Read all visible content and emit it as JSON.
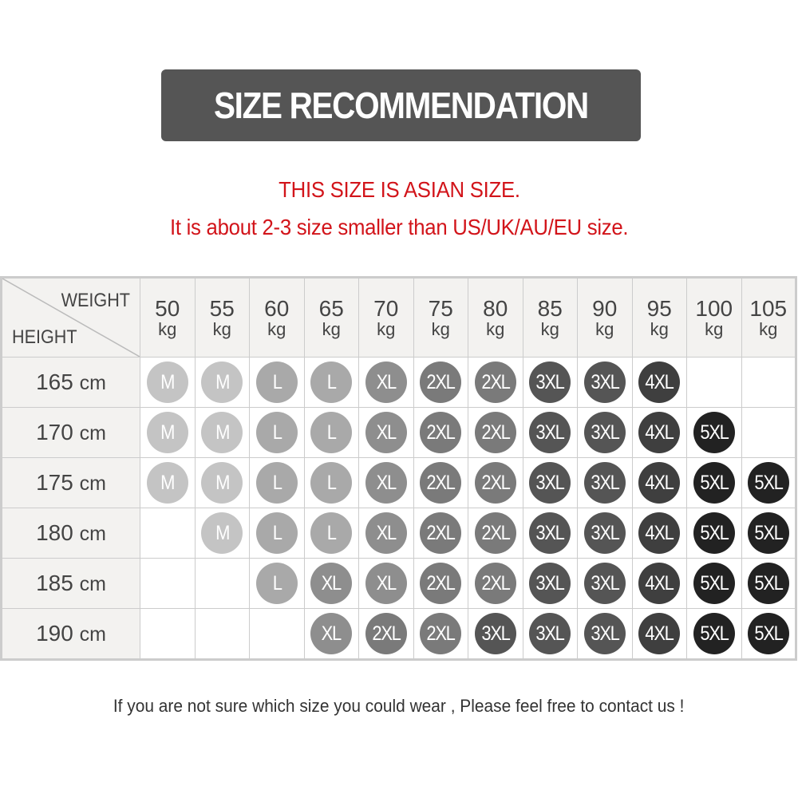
{
  "title": "SIZE RECOMMENDATION",
  "notice_line1": "THIS SIZE IS ASIAN SIZE.",
  "notice_line2": "It is about 2-3 size smaller than US/UK/AU/EU size.",
  "footer": "If you are not sure which size you could wear , Please feel free to contact us !",
  "table": {
    "corner_weight_label": "WEIGHT",
    "corner_height_label": "HEIGHT",
    "weight_unit": "kg",
    "height_unit": "cm",
    "weights": [
      "50",
      "55",
      "60",
      "65",
      "70",
      "75",
      "80",
      "85",
      "90",
      "95",
      "100",
      "105"
    ],
    "rows": [
      {
        "height": "165",
        "sizes": [
          "M",
          "M",
          "L",
          "L",
          "XL",
          "2XL",
          "2XL",
          "3XL",
          "3XL",
          "4XL",
          "",
          ""
        ]
      },
      {
        "height": "170",
        "sizes": [
          "M",
          "M",
          "L",
          "L",
          "XL",
          "2XL",
          "2XL",
          "3XL",
          "3XL",
          "4XL",
          "5XL",
          ""
        ]
      },
      {
        "height": "175",
        "sizes": [
          "M",
          "M",
          "L",
          "L",
          "XL",
          "2XL",
          "2XL",
          "3XL",
          "3XL",
          "4XL",
          "5XL",
          "5XL"
        ]
      },
      {
        "height": "180",
        "sizes": [
          "",
          "M",
          "L",
          "L",
          "XL",
          "2XL",
          "2XL",
          "3XL",
          "3XL",
          "4XL",
          "5XL",
          "5XL"
        ]
      },
      {
        "height": "185",
        "sizes": [
          "",
          "",
          "L",
          "XL",
          "XL",
          "2XL",
          "2XL",
          "3XL",
          "3XL",
          "4XL",
          "5XL",
          "5XL"
        ]
      },
      {
        "height": "190",
        "sizes": [
          "",
          "",
          "",
          "XL",
          "2XL",
          "2XL",
          "3XL",
          "3XL",
          "3XL",
          "4XL",
          "5XL",
          "5XL"
        ]
      }
    ]
  },
  "colors": {
    "title_bg": "#555555",
    "notice": "#d2141a",
    "size_M": "#c4c4c4",
    "size_L": "#a9a9a9",
    "size_XL": "#8e8e8e",
    "size_2XL": "#7a7a7a",
    "size_3XL": "#555555",
    "size_4XL": "#3f3f3f",
    "size_5XL": "#222222"
  }
}
